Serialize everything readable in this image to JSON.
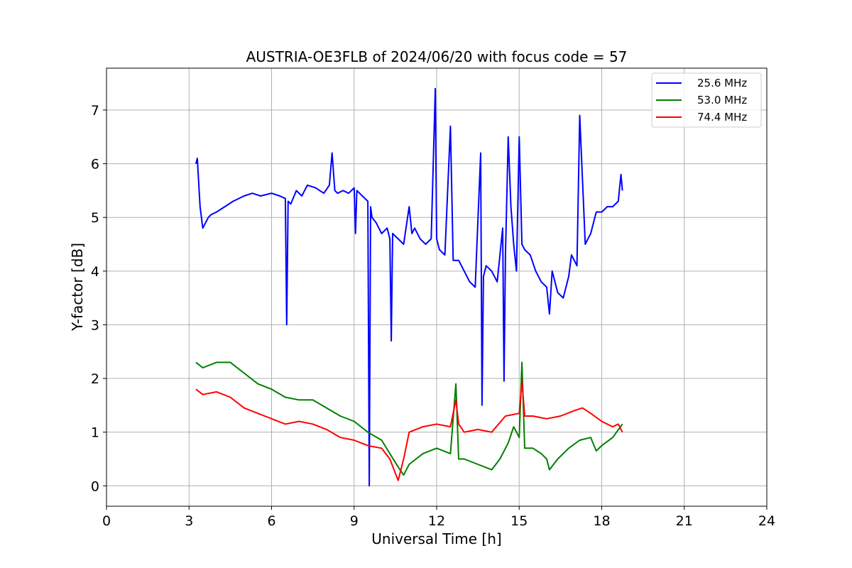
{
  "chart_data": {
    "type": "line",
    "title": "AUSTRIA-OE3FLB of 2024/06/20 with focus code = 57",
    "xlabel": "Universal Time [h]",
    "ylabel": "Y-factor [dB]",
    "xlim": [
      0,
      24
    ],
    "ylim": [
      -0.38,
      7.78
    ],
    "xticks": [
      0,
      3,
      6,
      9,
      12,
      15,
      18,
      21,
      24
    ],
    "xtick_labels": [
      "0",
      "3",
      "6",
      "9",
      "12",
      "15",
      "18",
      "21",
      "24"
    ],
    "yticks": [
      0,
      1,
      2,
      3,
      4,
      5,
      6,
      7
    ],
    "ytick_labels": [
      "0",
      "1",
      "2",
      "3",
      "4",
      "5",
      "6",
      "7"
    ],
    "grid": true,
    "legend_position": "top-right",
    "series": [
      {
        "name": "25.6 MHz",
        "color": "#0000ff",
        "x": [
          3.25,
          3.3,
          3.4,
          3.5,
          3.6,
          3.7,
          3.8,
          4.0,
          4.3,
          4.6,
          5.0,
          5.3,
          5.6,
          6.0,
          6.3,
          6.5,
          6.55,
          6.6,
          6.7,
          6.9,
          7.1,
          7.3,
          7.6,
          7.9,
          8.1,
          8.2,
          8.3,
          8.4,
          8.6,
          8.8,
          9.0,
          9.05,
          9.1,
          9.3,
          9.5,
          9.55,
          9.6,
          9.65,
          9.8,
          10.0,
          10.2,
          10.3,
          10.35,
          10.4,
          10.6,
          10.8,
          11.0,
          11.1,
          11.2,
          11.4,
          11.6,
          11.8,
          11.95,
          12.0,
          12.1,
          12.3,
          12.5,
          12.6,
          12.8,
          13.0,
          13.2,
          13.4,
          13.6,
          13.65,
          13.7,
          13.8,
          14.0,
          14.2,
          14.4,
          14.45,
          14.5,
          14.6,
          14.7,
          14.8,
          14.9,
          15.0,
          15.1,
          15.2,
          15.4,
          15.6,
          15.8,
          16.0,
          16.1,
          16.2,
          16.4,
          16.6,
          16.8,
          16.9,
          17.0,
          17.1,
          17.2,
          17.4,
          17.5,
          17.6,
          17.8,
          18.0,
          18.2,
          18.4,
          18.6,
          18.7,
          18.75
        ],
        "values": [
          6.0,
          6.1,
          5.2,
          4.8,
          4.9,
          5.0,
          5.05,
          5.1,
          5.2,
          5.3,
          5.4,
          5.45,
          5.4,
          5.45,
          5.4,
          5.35,
          3.0,
          5.3,
          5.25,
          5.5,
          5.4,
          5.6,
          5.55,
          5.45,
          5.6,
          6.2,
          5.5,
          5.45,
          5.5,
          5.45,
          5.55,
          4.7,
          5.5,
          5.4,
          5.3,
          0.0,
          5.2,
          5.0,
          4.9,
          4.7,
          4.8,
          4.6,
          2.7,
          4.7,
          4.6,
          4.5,
          5.2,
          4.7,
          4.8,
          4.6,
          4.5,
          4.6,
          7.4,
          4.6,
          4.4,
          4.3,
          6.7,
          4.2,
          4.2,
          4.0,
          3.8,
          3.7,
          6.2,
          1.5,
          3.9,
          4.1,
          4.0,
          3.8,
          4.8,
          1.95,
          4.3,
          6.5,
          5.2,
          4.5,
          4.0,
          6.5,
          4.5,
          4.4,
          4.3,
          4.0,
          3.8,
          3.7,
          3.2,
          4.0,
          3.6,
          3.5,
          3.9,
          4.3,
          4.2,
          4.1,
          6.9,
          4.5,
          4.6,
          4.7,
          5.1,
          5.1,
          5.2,
          5.2,
          5.3,
          5.8,
          5.5
        ]
      },
      {
        "name": "53.0 MHz",
        "color": "#008000",
        "x": [
          3.25,
          3.5,
          4.0,
          4.5,
          5.0,
          5.5,
          6.0,
          6.5,
          7.0,
          7.5,
          8.0,
          8.5,
          9.0,
          9.5,
          10.0,
          10.3,
          10.6,
          10.8,
          11.0,
          11.5,
          12.0,
          12.5,
          12.7,
          12.8,
          13.0,
          13.5,
          14.0,
          14.3,
          14.6,
          14.8,
          15.0,
          15.1,
          15.2,
          15.5,
          15.8,
          16.0,
          16.1,
          16.4,
          16.8,
          17.2,
          17.6,
          17.8,
          18.0,
          18.4,
          18.75
        ],
        "values": [
          2.3,
          2.2,
          2.3,
          2.3,
          2.1,
          1.9,
          1.8,
          1.65,
          1.6,
          1.6,
          1.45,
          1.3,
          1.2,
          1.0,
          0.85,
          0.6,
          0.35,
          0.2,
          0.4,
          0.6,
          0.7,
          0.6,
          1.9,
          0.5,
          0.5,
          0.4,
          0.3,
          0.5,
          0.8,
          1.1,
          0.9,
          2.3,
          0.7,
          0.7,
          0.6,
          0.5,
          0.3,
          0.5,
          0.7,
          0.85,
          0.9,
          0.65,
          0.75,
          0.9,
          1.15
        ]
      },
      {
        "name": "74.4 MHz",
        "color": "#ff0000",
        "x": [
          3.25,
          3.5,
          4.0,
          4.5,
          5.0,
          5.5,
          6.0,
          6.5,
          7.0,
          7.5,
          8.0,
          8.5,
          9.0,
          9.5,
          10.0,
          10.3,
          10.6,
          10.8,
          11.0,
          11.5,
          12.0,
          12.5,
          12.7,
          12.8,
          13.0,
          13.5,
          14.0,
          14.5,
          15.0,
          15.1,
          15.2,
          15.5,
          16.0,
          16.5,
          17.0,
          17.3,
          17.6,
          18.0,
          18.4,
          18.6,
          18.75
        ],
        "values": [
          1.8,
          1.7,
          1.75,
          1.65,
          1.45,
          1.35,
          1.25,
          1.15,
          1.2,
          1.15,
          1.05,
          0.9,
          0.85,
          0.75,
          0.7,
          0.5,
          0.1,
          0.5,
          1.0,
          1.1,
          1.15,
          1.1,
          1.6,
          1.15,
          1.0,
          1.05,
          1.0,
          1.3,
          1.35,
          1.95,
          1.3,
          1.3,
          1.25,
          1.3,
          1.4,
          1.45,
          1.35,
          1.2,
          1.1,
          1.15,
          1.0
        ]
      }
    ]
  }
}
